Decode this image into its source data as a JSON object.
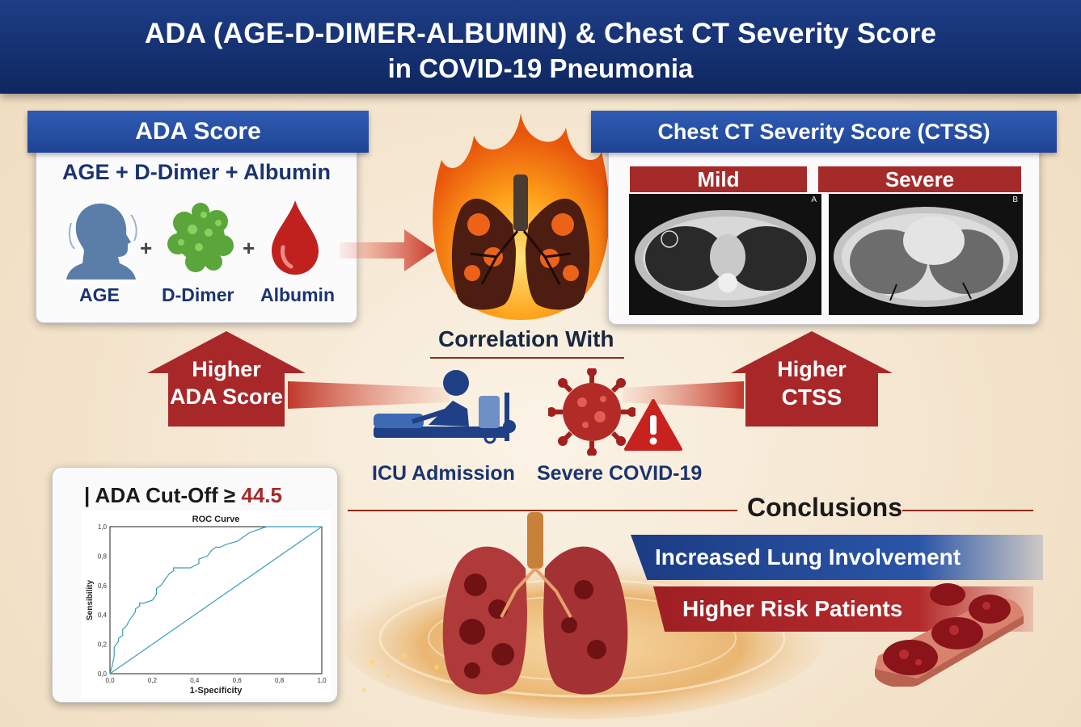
{
  "header": {
    "line1": "ADA (AGE-D-DIMER-ALBUMIN) & Chest CT Severity Score",
    "line2": "in COVID-19 Pneumonia"
  },
  "ada": {
    "tab_title": "ADA Score",
    "formula": "AGE + D-Dimer + Albumin",
    "components": [
      "AGE",
      "D-Dimer",
      "Albumin"
    ],
    "plus": "+"
  },
  "ct": {
    "tab_title": "Chest CT Severity Score (CTSS)",
    "columns": [
      {
        "label": "Mild",
        "letter": "A"
      },
      {
        "label": "Severe",
        "letter": "B"
      }
    ]
  },
  "correlation": {
    "title": "Correlation With",
    "left_arrow": [
      "Higher",
      "ADA Score"
    ],
    "right_arrow": [
      "Higher",
      "CTSS"
    ],
    "outcomes": [
      "ICU Admission",
      "Severe COVID-19"
    ]
  },
  "roc": {
    "card_label": "ADA Cut-Off ≥",
    "cutoff": "44.5",
    "bar": "|",
    "chart_data": {
      "type": "line",
      "title": "ROC Curve",
      "xlabel": "1-Specificity",
      "ylabel": "Sensibility",
      "xlim": [
        0,
        1
      ],
      "ylim": [
        0,
        1
      ],
      "x_ticks": [
        "0,0",
        "0,2",
        "0,4",
        "0,6",
        "0,8",
        "1,0"
      ],
      "y_ticks": [
        "0,0",
        "0,2",
        "0,4",
        "0,6",
        "0,8",
        "1,0"
      ],
      "series": [
        {
          "x": [
            0,
            0.01,
            0.02,
            0.02,
            0.04,
            0.04,
            0.06,
            0.06,
            0.08,
            0.09,
            0.1,
            0.12,
            0.12,
            0.14,
            0.14,
            0.16,
            0.2,
            0.22,
            0.22,
            0.24,
            0.26,
            0.28,
            0.3,
            0.3,
            0.33,
            0.38,
            0.42,
            0.42,
            0.46,
            0.48,
            0.5,
            0.52,
            0.55,
            0.6,
            0.62,
            0.64,
            0.66,
            0.7,
            0.74,
            0.8,
            0.86,
            0.9,
            1.0
          ],
          "y": [
            0,
            0.05,
            0.12,
            0.18,
            0.22,
            0.24,
            0.26,
            0.3,
            0.33,
            0.36,
            0.38,
            0.42,
            0.44,
            0.46,
            0.48,
            0.48,
            0.5,
            0.54,
            0.58,
            0.6,
            0.64,
            0.68,
            0.7,
            0.72,
            0.72,
            0.72,
            0.75,
            0.78,
            0.8,
            0.84,
            0.86,
            0.86,
            0.88,
            0.9,
            0.92,
            0.94,
            0.96,
            0.98,
            1.0,
            1.0,
            1.0,
            1.0,
            1.0
          ]
        },
        {
          "x": [
            0,
            1
          ],
          "y": [
            0,
            1
          ]
        }
      ]
    }
  },
  "conclusions": {
    "title": "Conclusions",
    "items": [
      "Increased Lung Involvement",
      "Higher Risk Patients"
    ]
  },
  "colors": {
    "navy": "#1d3d86",
    "accent_red": "#a52a2a",
    "roc_line": "#3a9fb8"
  }
}
